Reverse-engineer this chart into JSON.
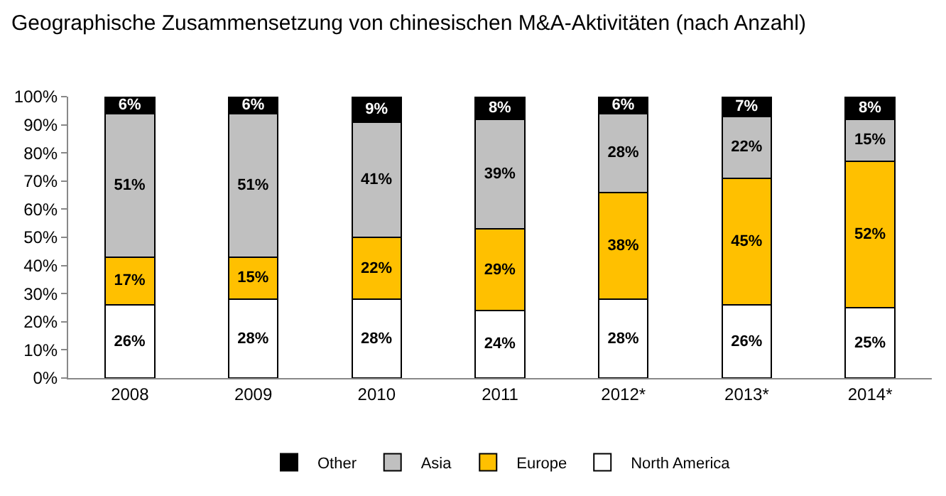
{
  "chart_data": {
    "type": "bar",
    "stacked": true,
    "title": "Geographische Zusammensetzung von chinesischen M&A-Aktivitäten (nach Anzahl)",
    "categories": [
      "2008",
      "2009",
      "2010",
      "2011",
      "2012*",
      "2013*",
      "2014*"
    ],
    "series": [
      {
        "name": "North America",
        "color": "#ffffff",
        "values": [
          26,
          28,
          28,
          24,
          28,
          26,
          25
        ],
        "value_labels": [
          "26%",
          "28%",
          "28%",
          "24%",
          "28%",
          "26%",
          "25%"
        ]
      },
      {
        "name": "Europe",
        "color": "#ffc000",
        "values": [
          17,
          15,
          22,
          29,
          38,
          45,
          52
        ],
        "value_labels": [
          "17%",
          "15%",
          "22%",
          "29%",
          "38%",
          "45%",
          "52%"
        ]
      },
      {
        "name": "Asia",
        "color": "#c0c0c0",
        "values": [
          51,
          51,
          41,
          39,
          28,
          22,
          15
        ],
        "value_labels": [
          "51%",
          "51%",
          "41%",
          "39%",
          "28%",
          "22%",
          "15%"
        ]
      },
      {
        "name": "Other",
        "color": "#000000",
        "values": [
          6,
          6,
          9,
          8,
          6,
          7,
          8
        ],
        "value_labels": [
          "6%",
          "6%",
          "9%",
          "8%",
          "6%",
          "7%",
          "8%"
        ]
      }
    ],
    "ylim": [
      0,
      100
    ],
    "yticks": [
      {
        "value": 0,
        "label": "0%"
      },
      {
        "value": 10,
        "label": "10%"
      },
      {
        "value": 20,
        "label": "20%"
      },
      {
        "value": 30,
        "label": "30%"
      },
      {
        "value": 40,
        "label": "40%"
      },
      {
        "value": 50,
        "label": "50%"
      },
      {
        "value": 60,
        "label": "60%"
      },
      {
        "value": 70,
        "label": "70%"
      },
      {
        "value": 80,
        "label": "80%"
      },
      {
        "value": 90,
        "label": "90%"
      },
      {
        "value": 100,
        "label": "100%"
      }
    ],
    "grid": false,
    "legend": "bottom"
  }
}
